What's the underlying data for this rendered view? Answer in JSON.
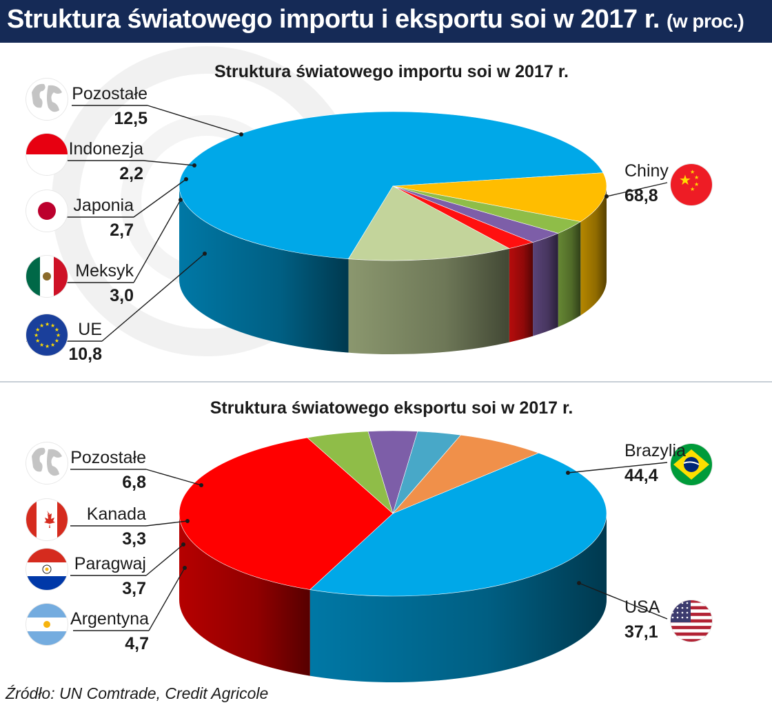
{
  "header": {
    "title": "Struktura światowego importu i eksportu soi w 2017 r.",
    "title_suffix": "(w proc.)"
  },
  "chart_data": [
    {
      "type": "pie",
      "title": "Struktura światowego importu soi w 2017 r.",
      "slices": [
        {
          "label": "Chiny",
          "value": 68.8,
          "value_text": "68,8",
          "color": "#00a8e8",
          "icon": "china-flag-icon"
        },
        {
          "label": "UE",
          "value": 10.8,
          "value_text": "10,8",
          "color": "#ffbd00",
          "icon": "eu-flag-icon"
        },
        {
          "label": "Meksyk",
          "value": 3.0,
          "value_text": "3,0",
          "color": "#8fbd48",
          "icon": "mexico-flag-icon"
        },
        {
          "label": "Japonia",
          "value": 2.7,
          "value_text": "2,7",
          "color": "#7d5ea8",
          "icon": "japan-flag-icon"
        },
        {
          "label": "Indonezja",
          "value": 2.2,
          "value_text": "2,2",
          "color": "#ff1010",
          "icon": "indonesia-flag-icon"
        },
        {
          "label": "Pozostałe",
          "value": 12.5,
          "value_text": "12,5",
          "color": "#c3d49b",
          "icon": "globe-icon"
        }
      ]
    },
    {
      "type": "pie",
      "title": "Struktura światowego eksportu soi w 2017 r.",
      "slices": [
        {
          "label": "Brazylia",
          "value": 44.4,
          "value_text": "44,4",
          "color": "#00a8e8",
          "icon": "brazil-flag-icon"
        },
        {
          "label": "USA",
          "value": 37.1,
          "value_text": "37,1",
          "color": "#ff0000",
          "icon": "usa-flag-icon"
        },
        {
          "label": "Argentyna",
          "value": 4.7,
          "value_text": "4,7",
          "color": "#8fbd48",
          "icon": "argentina-flag-icon"
        },
        {
          "label": "Paragwaj",
          "value": 3.7,
          "value_text": "3,7",
          "color": "#7d5ea8",
          "icon": "paraguay-flag-icon"
        },
        {
          "label": "Kanada",
          "value": 3.3,
          "value_text": "3,3",
          "color": "#48a8c8",
          "icon": "canada-flag-icon"
        },
        {
          "label": "Pozostałe",
          "value": 6.8,
          "value_text": "6,8",
          "color": "#f0904a",
          "icon": "globe-icon"
        }
      ]
    }
  ],
  "source": "Źródło: UN Comtrade, Credit Agricole"
}
